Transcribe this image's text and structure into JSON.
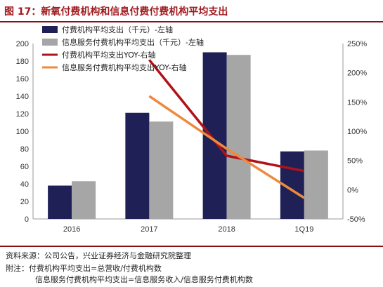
{
  "header": {
    "title": "图 17：新氧付费机构和信息付费付费机构平均支出"
  },
  "colors": {
    "bar_paid": "#1f2156",
    "bar_info": "#a6a6a6",
    "line_paid_yoy": "#b01218",
    "line_info_yoy": "#ed8a3e",
    "accent": "#8b0f13"
  },
  "chart_data": {
    "type": "bar",
    "categories": [
      "2016",
      "2017",
      "2018",
      "1Q19"
    ],
    "ylim": [
      0,
      200
    ],
    "yticks": [
      "0",
      "20",
      "40",
      "60",
      "80",
      "100",
      "120",
      "140",
      "160",
      "180",
      "200"
    ],
    "y2lim": [
      -50,
      250
    ],
    "y2ticks": [
      "-50%",
      "0%",
      "50%",
      "100%",
      "150%",
      "200%",
      "250%"
    ],
    "series": [
      {
        "name": "付费机构平均支出（千元）-左轴",
        "kind": "bar",
        "axis": "left",
        "values": [
          38,
          121,
          190,
          77
        ]
      },
      {
        "name": "信息服务付费机构平均支出（千元）-左轴",
        "kind": "bar",
        "axis": "left",
        "values": [
          43,
          111,
          187,
          78
        ]
      },
      {
        "name": "付费机构平均支出YOY-右轴",
        "kind": "line",
        "axis": "right",
        "values": [
          null,
          222,
          58,
          32
        ]
      },
      {
        "name": "信息服务付费机构平均支出YOY-右轴",
        "kind": "line",
        "axis": "right",
        "values": [
          null,
          160,
          70,
          -14
        ]
      }
    ],
    "legend_position": "top-left"
  },
  "footer": {
    "source": "资料来源：公司公告，兴业证券经济与金融研究院整理",
    "note1": "附注：付费机构平均支出=总营收/付费机构数",
    "note2": "信息服务付费机构平均支出=信息服务收入/信息服务付费机构数"
  }
}
